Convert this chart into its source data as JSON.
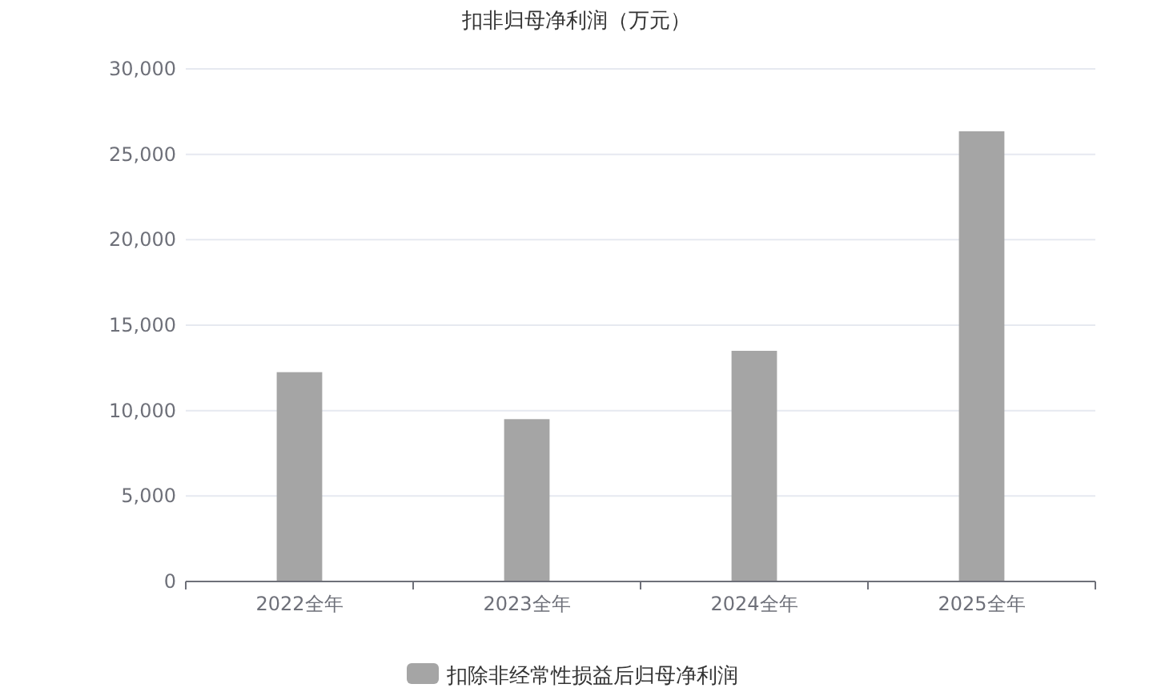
{
  "chart_data": {
    "type": "bar",
    "title": "扣非归母净利润（万元）",
    "categories": [
      "2022全年",
      "2023全年",
      "2024全年",
      "2025全年"
    ],
    "series": [
      {
        "name": "扣除非经常性损益后归母净利润",
        "color": "#a5a5a5",
        "values": [
          12250,
          9500,
          13500,
          26350
        ]
      }
    ],
    "ylim": [
      0,
      30000
    ],
    "yticks": [
      {
        "value": 0,
        "label": "0"
      },
      {
        "value": 5000,
        "label": "5,000"
      },
      {
        "value": 10000,
        "label": "10,000"
      },
      {
        "value": 15000,
        "label": "15,000"
      },
      {
        "value": 20000,
        "label": "20,000"
      },
      {
        "value": 25000,
        "label": "25,000"
      },
      {
        "value": 30000,
        "label": "30,000"
      }
    ],
    "grid": "y",
    "legend": "bottom"
  }
}
